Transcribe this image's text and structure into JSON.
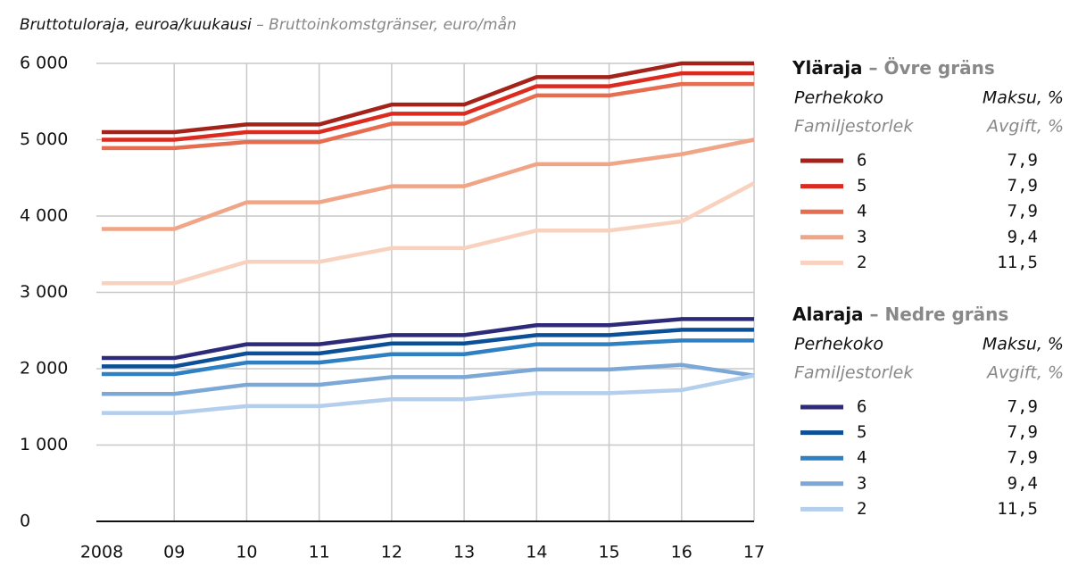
{
  "chart_data": {
    "type": "line",
    "title": "Bruttotuloraja, euroa/kuukausi",
    "subtitle": "– Bruttoinkomstgränser, euro/mån",
    "categories": [
      "2008",
      "09",
      "10",
      "11",
      "12",
      "13",
      "14",
      "15",
      "16",
      "17"
    ],
    "ylim": [
      0,
      6000
    ],
    "yticks": [
      {
        "value": 0,
        "label": "0"
      },
      {
        "value": 1000,
        "label": "1 000"
      },
      {
        "value": 2000,
        "label": "2 000"
      },
      {
        "value": 3000,
        "label": "3 000"
      },
      {
        "value": 4000,
        "label": "4 000"
      },
      {
        "value": 5000,
        "label": "5 000"
      },
      {
        "value": 6000,
        "label": "6 000"
      }
    ],
    "grid": true,
    "groups": [
      {
        "name": "Yläraja",
        "name_sv": "– Övre gräns",
        "col1": "Perhekoko",
        "col1_sv": "Familjestorlek",
        "col2": "Maksu, %",
        "col2_sv": "Avgift, %",
        "series": [
          {
            "name": "6",
            "fee": "7,9",
            "color": "#a3231a",
            "values": [
              5100,
              5100,
              5200,
              5200,
              5460,
              5460,
              5820,
              5820,
              6000,
              6000
            ]
          },
          {
            "name": "5",
            "fee": "7,9",
            "color": "#dc2a1e",
            "values": [
              5000,
              5000,
              5100,
              5100,
              5340,
              5340,
              5700,
              5700,
              5870,
              5870
            ]
          },
          {
            "name": "4",
            "fee": "7,9",
            "color": "#e66d50",
            "values": [
              4890,
              4890,
              4970,
              4970,
              5210,
              5210,
              5580,
              5580,
              5730,
              5730
            ]
          },
          {
            "name": "3",
            "fee": "9,4",
            "color": "#f0a587",
            "values": [
              3830,
              3830,
              4180,
              4180,
              4390,
              4390,
              4680,
              4680,
              4810,
              5000
            ]
          },
          {
            "name": "2",
            "fee": "11,5",
            "color": "#f8d2bf",
            "values": [
              3120,
              3120,
              3400,
              3400,
              3580,
              3580,
              3810,
              3810,
              3930,
              4430
            ]
          }
        ]
      },
      {
        "name": "Alaraja",
        "name_sv": "– Nedre gräns",
        "col1": "Perhekoko",
        "col1_sv": "Familjestorlek",
        "col2": "Maksu, %",
        "col2_sv": "Avgift, %",
        "series": [
          {
            "name": "6",
            "fee": "7,9",
            "color": "#2e2a7a",
            "values": [
              2140,
              2140,
              2320,
              2320,
              2440,
              2440,
              2570,
              2570,
              2650,
              2650
            ]
          },
          {
            "name": "5",
            "fee": "7,9",
            "color": "#0b4f96",
            "values": [
              2030,
              2030,
              2200,
              2200,
              2330,
              2330,
              2440,
              2440,
              2510,
              2510
            ]
          },
          {
            "name": "4",
            "fee": "7,9",
            "color": "#2f80c2",
            "values": [
              1930,
              1930,
              2080,
              2080,
              2190,
              2190,
              2320,
              2320,
              2370,
              2370
            ]
          },
          {
            "name": "3",
            "fee": "9,4",
            "color": "#7ca8d8",
            "values": [
              1670,
              1670,
              1790,
              1790,
              1890,
              1890,
              1990,
              1990,
              2050,
              1910
            ]
          },
          {
            "name": "2",
            "fee": "11,5",
            "color": "#b4cfee",
            "values": [
              1420,
              1420,
              1510,
              1510,
              1600,
              1600,
              1680,
              1680,
              1720,
              1910
            ]
          }
        ]
      }
    ]
  }
}
